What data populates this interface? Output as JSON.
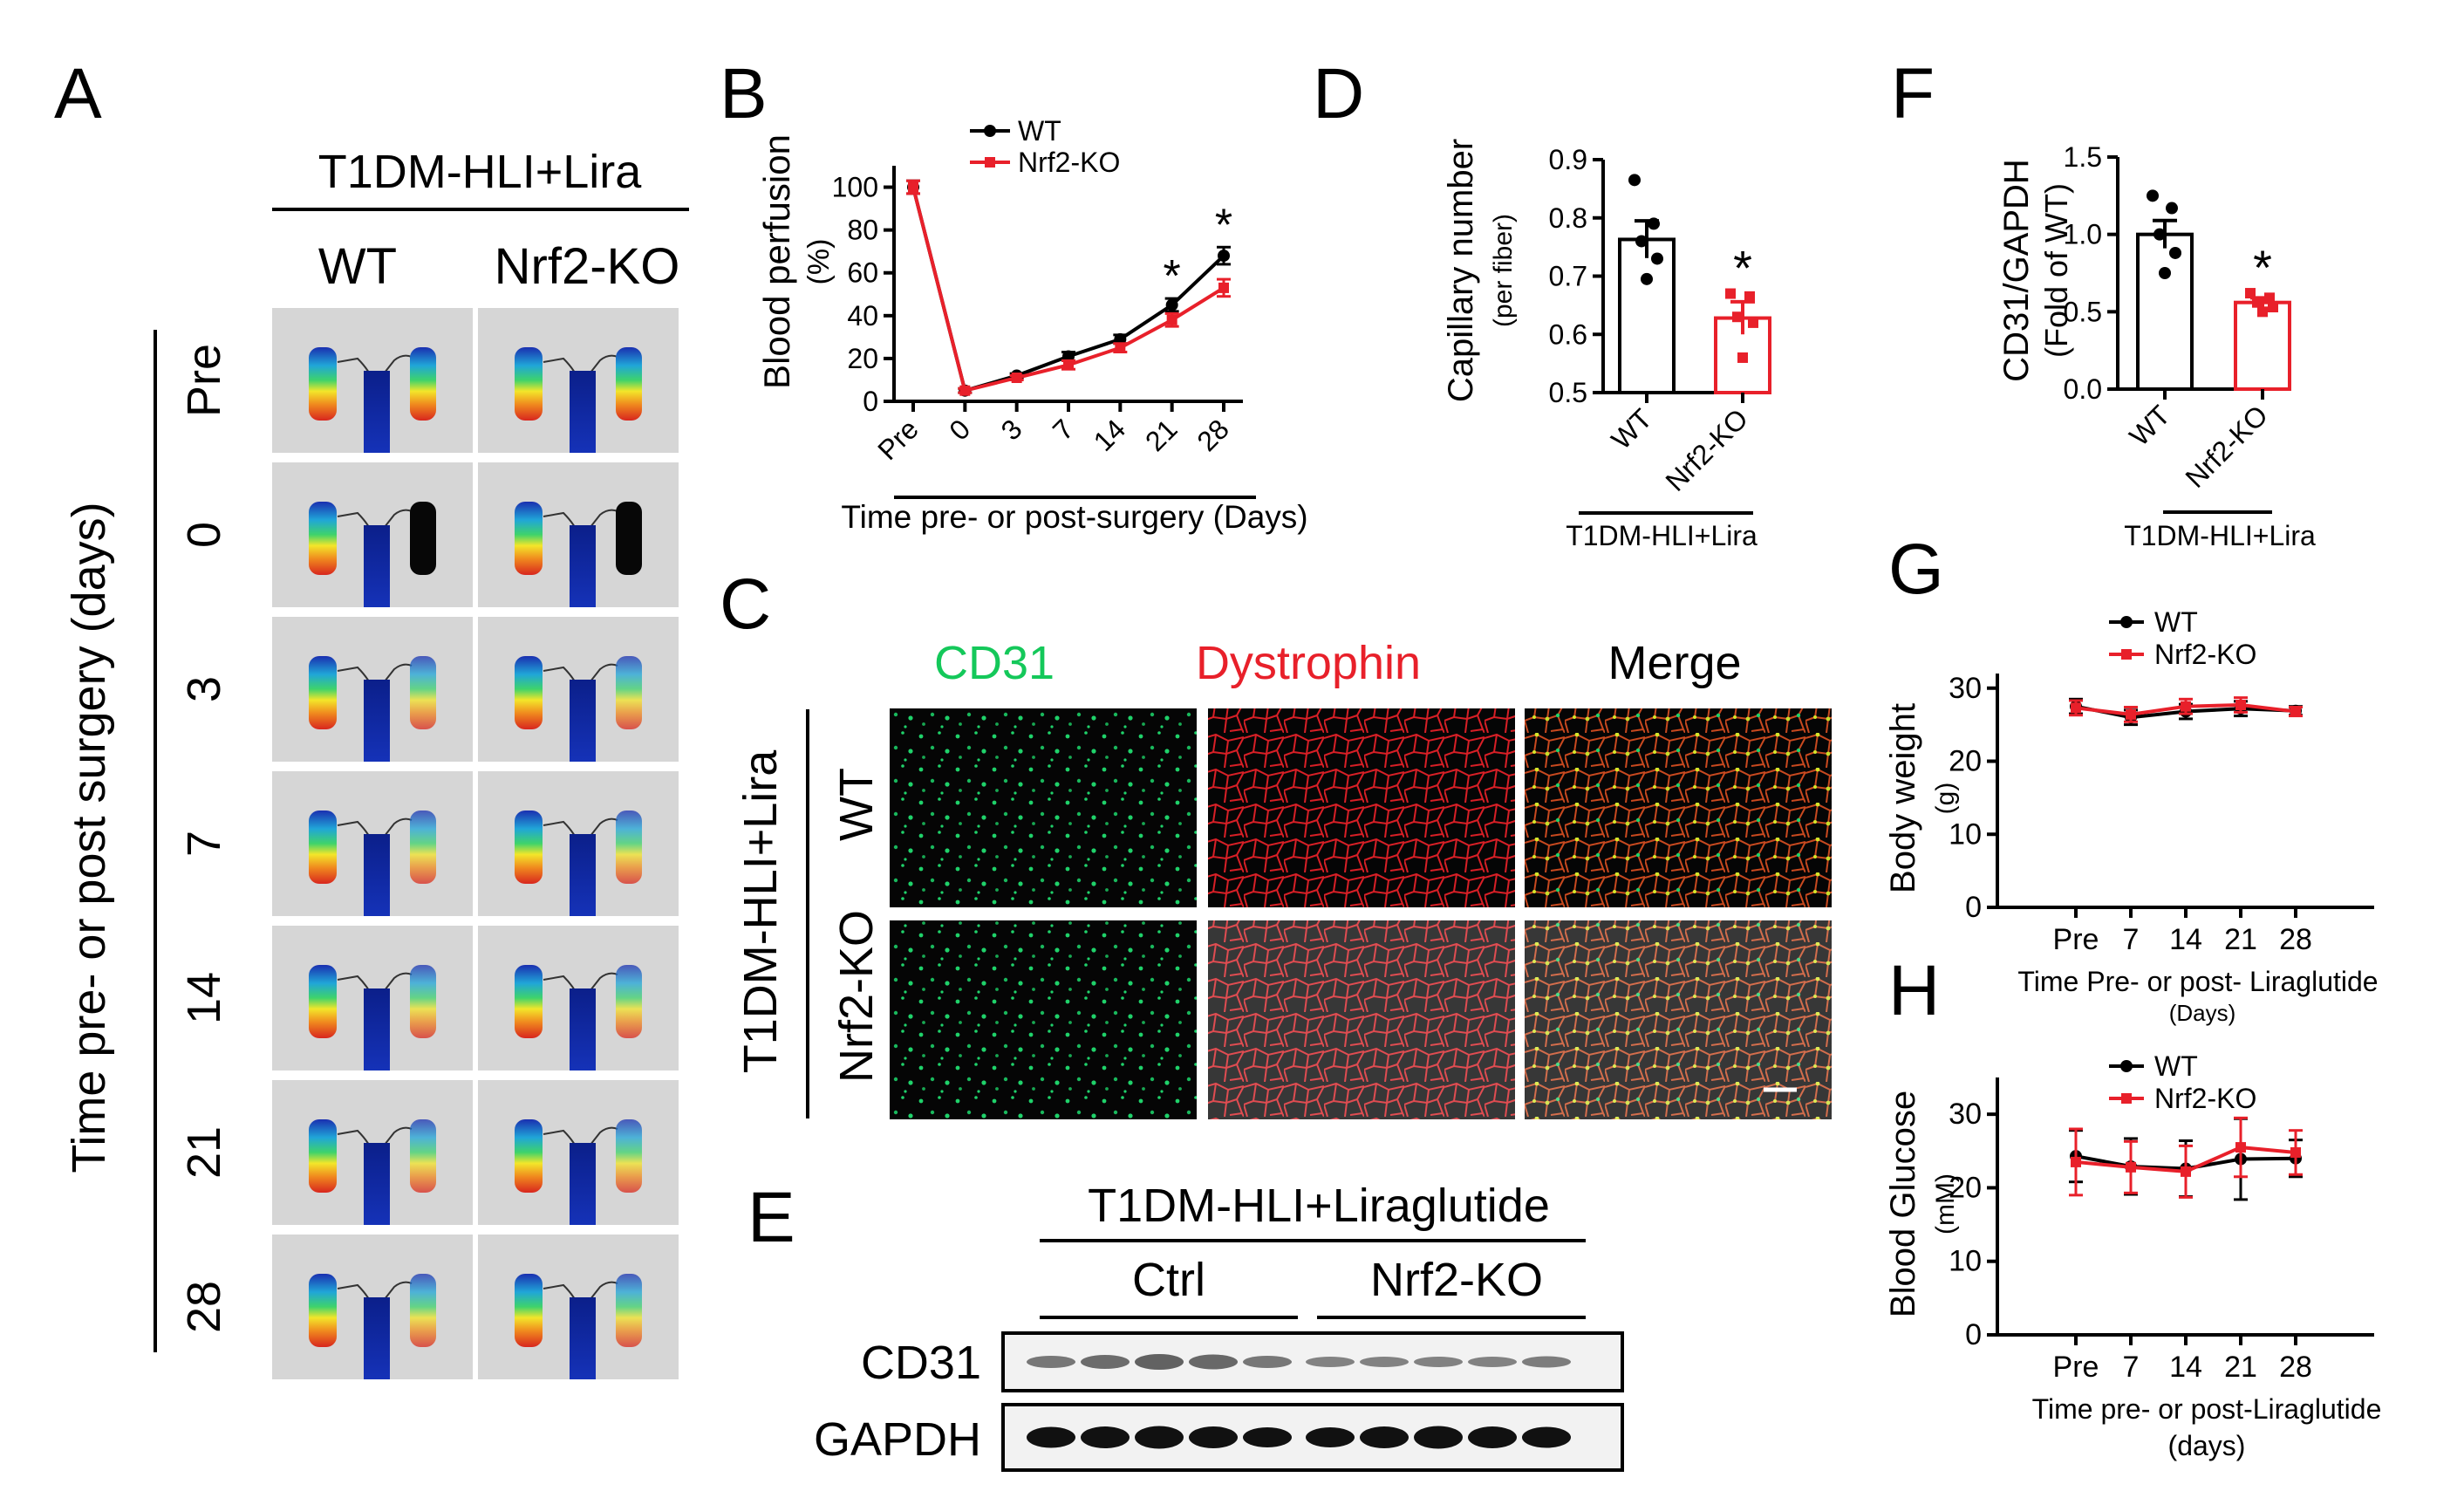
{
  "colors": {
    "wt": "#000000",
    "ko": "#e8202a",
    "cd31_green": "#14c85a",
    "dystrophin_red": "#e8202a",
    "ldi_bg": "#d6d6d6",
    "muscle_bg": "#050505"
  },
  "panel_letters": {
    "A": "A",
    "B": "B",
    "C": "C",
    "D": "D",
    "E": "E",
    "F": "F",
    "G": "G",
    "H": "H"
  },
  "panel_a": {
    "group_header": "T1DM-HLI+Lira",
    "col_labels": [
      "WT",
      "Nrf2-KO"
    ],
    "row_labels": [
      "Pre",
      "0",
      "3",
      "7",
      "14",
      "21",
      "28"
    ],
    "axis_title": "Time pre- or post surgery (days)",
    "image_icon": "laser-doppler-perfusion-image"
  },
  "panel_c": {
    "col_labels": [
      "CD31",
      "Dystrophin",
      "Merge"
    ],
    "row_labels": [
      "WT",
      "Nrf2-KO"
    ],
    "group_label": "T1DM-HLI+Lira",
    "image_icon": "immunofluorescence-image"
  },
  "panel_e": {
    "header": "T1DM-HLI+Liraglutide",
    "groups": [
      "Ctrl",
      "Nrf2-KO"
    ],
    "rows": [
      "CD31",
      "GAPDH"
    ],
    "image_icon": "western-blot-image"
  },
  "chart_data": [
    {
      "id": "B",
      "type": "line",
      "categories": [
        "Pre",
        "0",
        "3",
        "7",
        "14",
        "21",
        "28"
      ],
      "ylabel": "Blood perfusion",
      "yunit": "(%)",
      "xlabel": "Time pre- or post-surgery (Days)",
      "ylim": [
        0,
        110
      ],
      "yticks": [
        0,
        20,
        40,
        60,
        80,
        100
      ],
      "series": [
        {
          "name": "WT",
          "color": "#000000",
          "values": [
            100,
            5,
            12,
            21,
            29,
            45,
            68
          ],
          "errors": [
            3,
            1,
            1,
            2,
            2,
            3,
            4
          ]
        },
        {
          "name": "Nrf2-KO",
          "color": "#e8202a",
          "values": [
            100,
            5,
            11,
            17,
            25,
            38,
            53
          ],
          "errors": [
            3,
            1,
            1,
            2,
            2,
            3,
            4
          ]
        }
      ],
      "significance": [
        {
          "category": "21",
          "label": "*"
        },
        {
          "category": "28",
          "label": "*"
        }
      ]
    },
    {
      "id": "D",
      "type": "bar",
      "categories": [
        "WT",
        "Nrf2-KO"
      ],
      "ylabel": "Capillary number",
      "yunit": "(per fiber)",
      "group_label": "T1DM-HLI+Lira",
      "ylim": [
        0.5,
        0.9
      ],
      "yticks": [
        0.5,
        0.6,
        0.7,
        0.8,
        0.9
      ],
      "tick_labels": [
        "0.5",
        "0.6",
        "0.7",
        "0.8",
        "0.9"
      ],
      "values": [
        0.763,
        0.628
      ],
      "errors": [
        0.032,
        0.028
      ],
      "colors": [
        "#000000",
        "#e8202a"
      ],
      "points": [
        [
          0.865,
          0.79,
          0.76,
          0.73,
          0.695
        ],
        [
          0.67,
          0.665,
          0.63,
          0.62,
          0.56
        ]
      ],
      "significance": [
        {
          "category": "Nrf2-KO",
          "label": "*"
        }
      ]
    },
    {
      "id": "F",
      "type": "bar",
      "categories": [
        "WT",
        "Nrf2-KO"
      ],
      "ylabel": "CD31/GAPDH",
      "yunit": "(Fold of WT)",
      "group_label": "T1DM-HLI+Lira",
      "ylim": [
        0,
        1.5
      ],
      "yticks": [
        0,
        0.5,
        1.0,
        1.5
      ],
      "tick_labels": [
        "0.0",
        "0.5",
        "1.0",
        "1.5"
      ],
      "values": [
        1.0,
        0.56
      ],
      "errors": [
        0.09,
        0.03
      ],
      "colors": [
        "#000000",
        "#e8202a"
      ],
      "points": [
        [
          1.25,
          1.17,
          1.0,
          0.88,
          0.75
        ],
        [
          0.62,
          0.59,
          0.56,
          0.53,
          0.5
        ]
      ],
      "significance": [
        {
          "category": "Nrf2-KO",
          "label": "*"
        }
      ]
    },
    {
      "id": "G",
      "type": "line",
      "categories": [
        "Pre",
        "7",
        "14",
        "21",
        "28"
      ],
      "ylabel": "Body weight",
      "yunit": "(g)",
      "xlabel": "Time Pre- or post- Liraglutide",
      "xunit": "(Days)",
      "ylim": [
        0,
        32
      ],
      "yticks": [
        0,
        10,
        20,
        30
      ],
      "series": [
        {
          "name": "WT",
          "color": "#000000",
          "values": [
            27.5,
            26.0,
            26.8,
            27.2,
            26.9
          ],
          "errors": [
            1.0,
            1.0,
            1.0,
            1.0,
            0.6
          ]
        },
        {
          "name": "Nrf2-KO",
          "color": "#e8202a",
          "values": [
            27.3,
            26.4,
            27.5,
            27.7,
            26.8
          ],
          "errors": [
            1.0,
            1.0,
            1.0,
            1.0,
            0.6
          ]
        }
      ]
    },
    {
      "id": "H",
      "type": "line",
      "categories": [
        "Pre",
        "7",
        "14",
        "21",
        "28"
      ],
      "ylabel": "Blood Glucose",
      "yunit": "(mM)",
      "xlabel": "Time pre- or post-Liraglutide",
      "xunit": "(days)",
      "ylim": [
        0,
        35
      ],
      "yticks": [
        0,
        10,
        20,
        30
      ],
      "series": [
        {
          "name": "WT",
          "color": "#000000",
          "values": [
            24.3,
            22.9,
            22.6,
            23.9,
            24.0
          ],
          "errors": [
            3.5,
            3.8,
            3.8,
            5.5,
            2.5
          ]
        },
        {
          "name": "Nrf2-KO",
          "color": "#e8202a",
          "values": [
            23.5,
            22.8,
            22.2,
            25.5,
            24.8
          ],
          "errors": [
            4.5,
            3.5,
            3.5,
            4.0,
            3.0
          ]
        }
      ]
    }
  ]
}
